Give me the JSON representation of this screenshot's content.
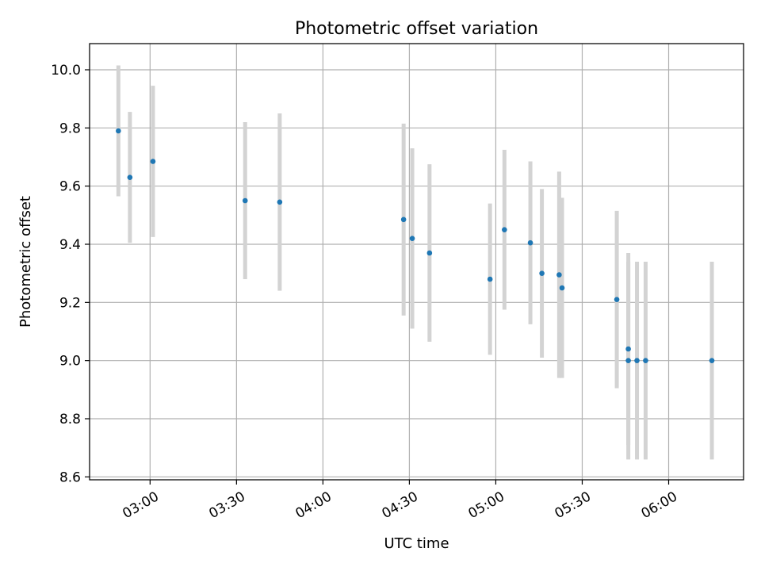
{
  "chart_data": {
    "type": "scatter",
    "title": "Photometric offset variation",
    "xlabel": "UTC time",
    "ylabel": "Photometric offset",
    "x_axis_kind": "time",
    "xlim": [
      "02:39",
      "06:26"
    ],
    "ylim": [
      8.59,
      10.09
    ],
    "xticks": [
      "03:00",
      "03:30",
      "04:00",
      "04:30",
      "05:00",
      "05:30",
      "06:00"
    ],
    "yticks": [
      8.6,
      8.8,
      9.0,
      9.2,
      9.4,
      9.6,
      9.8,
      10.0
    ],
    "grid": true,
    "legend": "none",
    "colors": {
      "point": "#1f77b4",
      "errorbar": "#d3d3d3",
      "grid": "#b0b0b0"
    },
    "series": [
      {
        "points": [
          {
            "x": "02:49",
            "y": 9.79,
            "err": 0.225
          },
          {
            "x": "02:53",
            "y": 9.63,
            "err": 0.225
          },
          {
            "x": "03:01",
            "y": 9.685,
            "err": 0.26
          },
          {
            "x": "03:33",
            "y": 9.55,
            "err": 0.27
          },
          {
            "x": "03:45",
            "y": 9.545,
            "err": 0.305
          },
          {
            "x": "04:28",
            "y": 9.485,
            "err": 0.33
          },
          {
            "x": "04:31",
            "y": 9.42,
            "err": 0.31
          },
          {
            "x": "04:37",
            "y": 9.37,
            "err": 0.305
          },
          {
            "x": "04:58",
            "y": 9.28,
            "err": 0.26
          },
          {
            "x": "05:03",
            "y": 9.45,
            "err": 0.275
          },
          {
            "x": "05:12",
            "y": 9.405,
            "err": 0.28
          },
          {
            "x": "05:16",
            "y": 9.3,
            "err": 0.29
          },
          {
            "x": "05:22",
            "y": 9.295,
            "err": 0.355
          },
          {
            "x": "05:23",
            "y": 9.25,
            "err": 0.31
          },
          {
            "x": "05:42",
            "y": 9.21,
            "err": 0.305
          },
          {
            "x": "05:46",
            "y": 9.04,
            "err": 0.33
          },
          {
            "x": "05:46",
            "y": 9.0,
            "err": 0.34
          },
          {
            "x": "05:49",
            "y": 9.0,
            "err": 0.34
          },
          {
            "x": "05:52",
            "y": 9.0,
            "err": 0.34
          },
          {
            "x": "06:15",
            "y": 9.0,
            "err": 0.34
          }
        ]
      }
    ]
  }
}
